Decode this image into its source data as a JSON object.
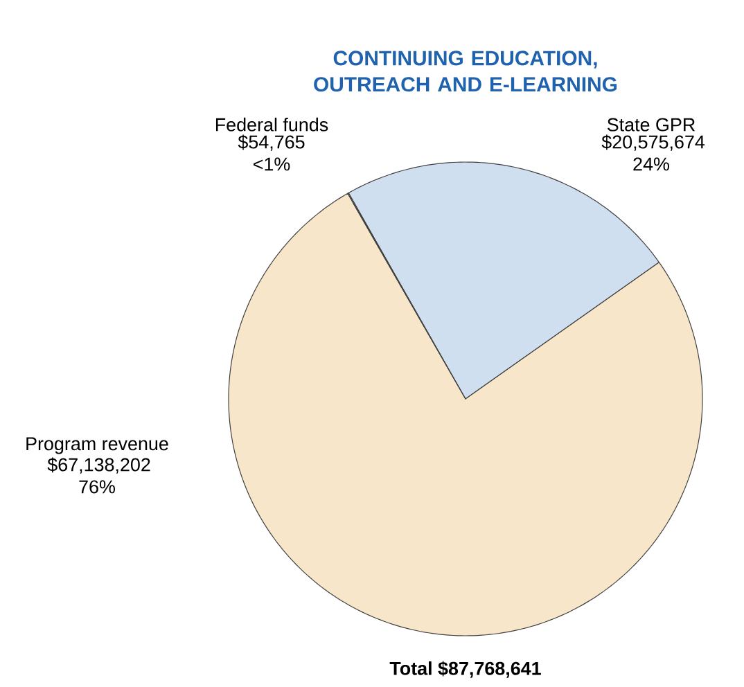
{
  "chart_data": {
    "type": "pie",
    "title": "CONTINUING EDUCATION, OUTREACH AND E-LEARNING",
    "categories": [
      "State GPR",
      "Program revenue",
      "Federal funds"
    ],
    "values": [
      20575674,
      67138202,
      54765
    ],
    "value_labels": [
      "$20,575,674 24%",
      "$67,138,202 76%",
      "$54,765 <1%"
    ],
    "colors": [
      "#cfdfef",
      "#f7e6c9",
      "#d6e0c8"
    ],
    "annotations": [
      "Total $87,768,641"
    ]
  }
}
